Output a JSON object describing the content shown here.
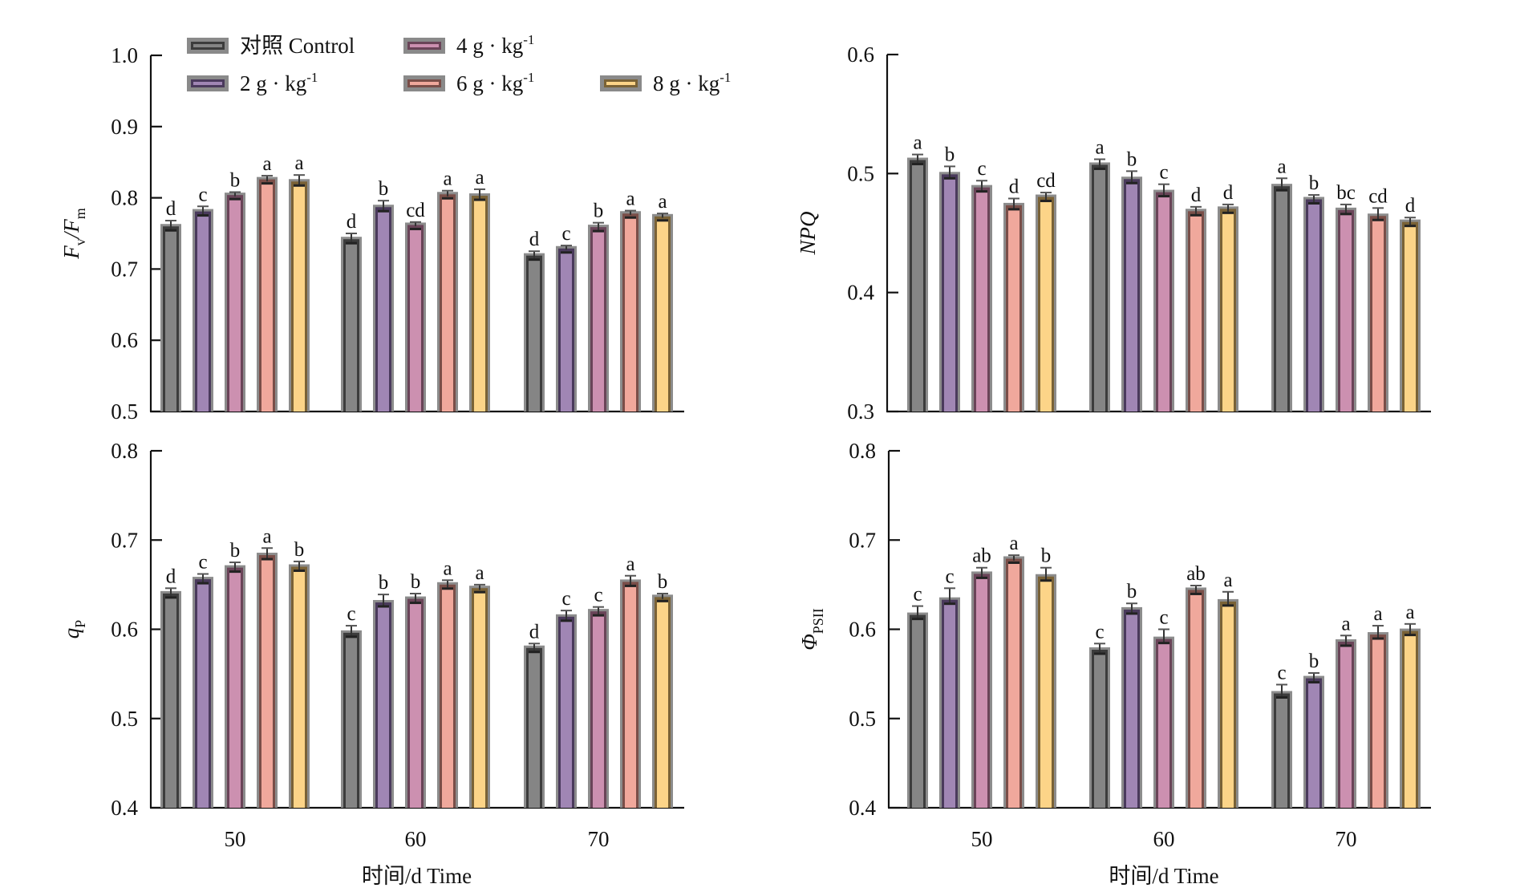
{
  "legend": [
    {
      "name": "对照 Control",
      "base": "对照 Control",
      "sup": "",
      "fill": "#858585",
      "edge": "#3c3c3c"
    },
    {
      "name": "2 g · kg-1",
      "base": "2 g · kg",
      "sup": "-1",
      "fill": "#a086b4",
      "edge": "#4a3a5c"
    },
    {
      "name": "4 g · kg-1",
      "base": "4 g · kg",
      "sup": "-1",
      "fill": "#cc90b0",
      "edge": "#6a4458"
    },
    {
      "name": "6 g · kg-1",
      "base": "6 g · kg",
      "sup": "-1",
      "fill": "#f0a89c",
      "edge": "#7a4e48"
    },
    {
      "name": "8 g · kg-1",
      "base": "8 g · kg",
      "sup": "-1",
      "fill": "#fcd488",
      "edge": "#7a6236"
    }
  ],
  "chart_data": [
    {
      "id": "fvfm",
      "type": "bar",
      "ylabel": "Fv/Fm",
      "ylabel_parts": {
        "main": "F",
        "sub1": "v",
        "sep": "/F",
        "sub2": "m"
      },
      "xlabel": "",
      "categories": [
        "50",
        "60",
        "70"
      ],
      "ylim": [
        0.5,
        1.0
      ],
      "yticks": [
        "0.5",
        "0.6",
        "0.7",
        "0.8",
        "0.9",
        "1.0"
      ],
      "show_xticklabels": false,
      "series": [
        {
          "name": "对照 Control",
          "values": [
            0.761,
            0.743,
            0.72
          ],
          "errors": [
            0.007,
            0.007,
            0.005
          ],
          "letters": [
            "d",
            "d",
            "d"
          ]
        },
        {
          "name": "2 g · kg-1",
          "values": [
            0.782,
            0.788,
            0.73
          ],
          "errors": [
            0.006,
            0.008,
            0.003
          ],
          "letters": [
            "c",
            "b",
            "c"
          ]
        },
        {
          "name": "4 g · kg-1",
          "values": [
            0.805,
            0.763,
            0.76
          ],
          "errors": [
            0.003,
            0.003,
            0.005
          ],
          "letters": [
            "b",
            "cd",
            "b"
          ]
        },
        {
          "name": "6 g · kg-1",
          "values": [
            0.827,
            0.806,
            0.779
          ],
          "errors": [
            0.004,
            0.004,
            0.003
          ],
          "letters": [
            "a",
            "a",
            "a"
          ]
        },
        {
          "name": "8 g · kg-1",
          "values": [
            0.824,
            0.804,
            0.775
          ],
          "errors": [
            0.008,
            0.008,
            0.003
          ],
          "letters": [
            "a",
            "a",
            "a"
          ]
        }
      ]
    },
    {
      "id": "npq",
      "type": "bar",
      "ylabel": "NPQ",
      "xlabel": "",
      "categories": [
        "50",
        "60",
        "70"
      ],
      "ylim": [
        0.3,
        0.6
      ],
      "yticks": [
        "0.3",
        "0.4",
        "0.5",
        "0.6"
      ],
      "show_xticklabels": false,
      "series": [
        {
          "name": "对照 Control",
          "values": [
            0.512,
            0.508,
            0.49
          ],
          "errors": [
            0.004,
            0.004,
            0.006
          ],
          "letters": [
            "a",
            "a",
            "a"
          ]
        },
        {
          "name": "2 g · kg-1",
          "values": [
            0.5,
            0.496,
            0.479
          ],
          "errors": [
            0.006,
            0.006,
            0.003
          ],
          "letters": [
            "b",
            "b",
            "b"
          ]
        },
        {
          "name": "4 g · kg-1",
          "values": [
            0.489,
            0.485,
            0.47
          ],
          "errors": [
            0.005,
            0.006,
            0.004
          ],
          "letters": [
            "c",
            "c",
            "bc"
          ]
        },
        {
          "name": "6 g · kg-1",
          "values": [
            0.474,
            0.469,
            0.465
          ],
          "errors": [
            0.005,
            0.003,
            0.006
          ],
          "letters": [
            "d",
            "d",
            "cd"
          ]
        },
        {
          "name": "8 g · kg-1",
          "values": [
            0.481,
            0.471,
            0.46
          ],
          "errors": [
            0.003,
            0.003,
            0.003
          ],
          "letters": [
            "cd",
            "d",
            "d"
          ]
        }
      ]
    },
    {
      "id": "qp",
      "type": "bar",
      "ylabel": "qP",
      "ylabel_parts": {
        "main": "q",
        "sub1": "P"
      },
      "xlabel": "时间/d  Time",
      "categories": [
        "50",
        "60",
        "70"
      ],
      "ylim": [
        0.4,
        0.8
      ],
      "yticks": [
        "0.4",
        "0.5",
        "0.6",
        "0.7",
        "0.8"
      ],
      "show_xticklabels": true,
      "series": [
        {
          "name": "对照 Control",
          "values": [
            0.641,
            0.597,
            0.58
          ],
          "errors": [
            0.005,
            0.007,
            0.004
          ],
          "letters": [
            "d",
            "c",
            "d"
          ]
        },
        {
          "name": "2 g · kg-1",
          "values": [
            0.657,
            0.631,
            0.615
          ],
          "errors": [
            0.005,
            0.008,
            0.006
          ],
          "letters": [
            "c",
            "b",
            "c"
          ]
        },
        {
          "name": "4 g · kg-1",
          "values": [
            0.67,
            0.635,
            0.621
          ],
          "errors": [
            0.005,
            0.005,
            0.004
          ],
          "letters": [
            "b",
            "b",
            "c"
          ]
        },
        {
          "name": "6 g · kg-1",
          "values": [
            0.684,
            0.651,
            0.654
          ],
          "errors": [
            0.007,
            0.004,
            0.006
          ],
          "letters": [
            "a",
            "a",
            "a"
          ]
        },
        {
          "name": "8 g · kg-1",
          "values": [
            0.671,
            0.647,
            0.637
          ],
          "errors": [
            0.005,
            0.003,
            0.003
          ],
          "letters": [
            "b",
            "a",
            "b"
          ]
        }
      ]
    },
    {
      "id": "phipsii",
      "type": "bar",
      "ylabel": "ΦPSII",
      "ylabel_parts": {
        "main": "Φ",
        "sub1": "PSII"
      },
      "xlabel": "时间/d  Time",
      "categories": [
        "50",
        "60",
        "70"
      ],
      "ylim": [
        0.4,
        0.8
      ],
      "yticks": [
        "0.4",
        "0.5",
        "0.6",
        "0.7",
        "0.8"
      ],
      "show_xticklabels": true,
      "series": [
        {
          "name": "对照 Control",
          "values": [
            0.617,
            0.578,
            0.529
          ],
          "errors": [
            0.009,
            0.006,
            0.009
          ],
          "letters": [
            "c",
            "c",
            "c"
          ]
        },
        {
          "name": "2 g · kg-1",
          "values": [
            0.634,
            0.623,
            0.546
          ],
          "errors": [
            0.012,
            0.006,
            0.005
          ],
          "letters": [
            "c",
            "b",
            "b"
          ]
        },
        {
          "name": "4 g · kg-1",
          "values": [
            0.663,
            0.59,
            0.587
          ],
          "errors": [
            0.006,
            0.01,
            0.006
          ],
          "letters": [
            "ab",
            "c",
            "a"
          ]
        },
        {
          "name": "6 g · kg-1",
          "values": [
            0.68,
            0.645,
            0.595
          ],
          "errors": [
            0.003,
            0.004,
            0.009
          ],
          "letters": [
            "a",
            "ab",
            "a"
          ]
        },
        {
          "name": "8 g · kg-1",
          "values": [
            0.66,
            0.632,
            0.599
          ],
          "errors": [
            0.009,
            0.01,
            0.007
          ],
          "letters": [
            "b",
            "a",
            "a"
          ]
        }
      ]
    }
  ]
}
